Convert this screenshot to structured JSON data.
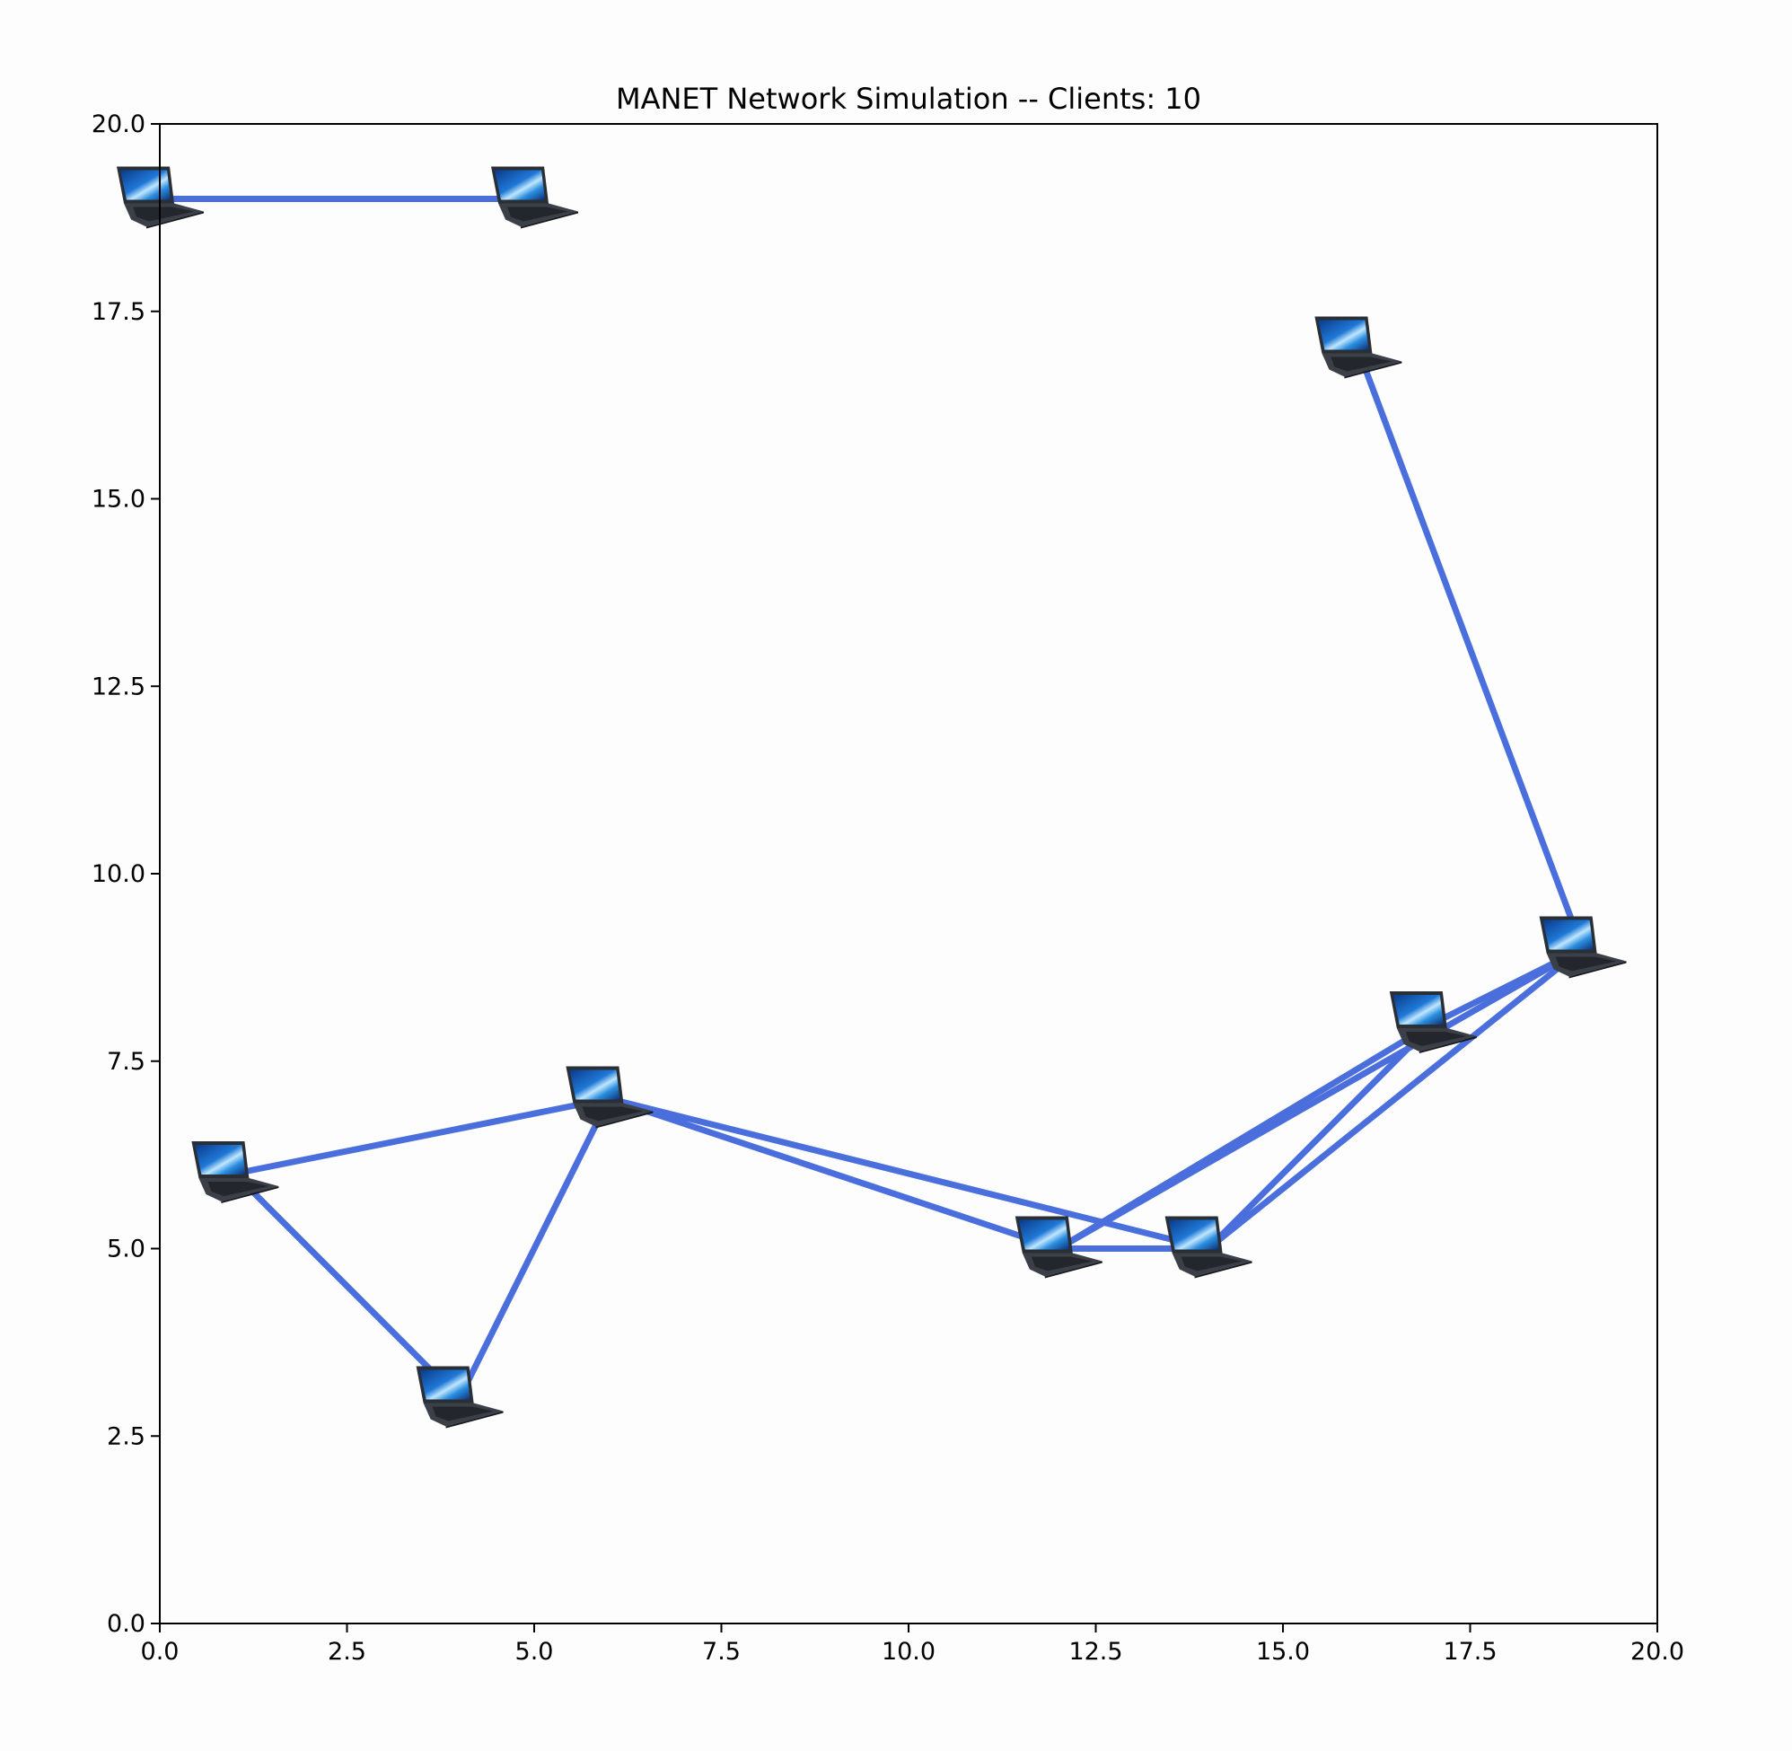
{
  "chart_data": {
    "type": "scatter",
    "title": "MANET Network Simulation -- Clients: 10",
    "xlabel": "",
    "ylabel": "",
    "xlim": [
      0.0,
      20.0
    ],
    "ylim": [
      0.0,
      20.0
    ],
    "x_ticks": [
      "0.0",
      "2.5",
      "5.0",
      "7.5",
      "10.0",
      "12.5",
      "15.0",
      "17.5",
      "20.0"
    ],
    "y_ticks": [
      "0.0",
      "2.5",
      "5.0",
      "7.5",
      "10.0",
      "12.5",
      "15.0",
      "17.5",
      "20.0"
    ],
    "grid": false,
    "marker": "laptop-icon",
    "link_color": "#4a6fdc",
    "nodes": [
      {
        "id": 0,
        "x": 0.0,
        "y": 19.0
      },
      {
        "id": 1,
        "x": 5.0,
        "y": 19.0
      },
      {
        "id": 2,
        "x": 16.0,
        "y": 17.0
      },
      {
        "id": 3,
        "x": 19.0,
        "y": 9.0
      },
      {
        "id": 4,
        "x": 17.0,
        "y": 8.0
      },
      {
        "id": 5,
        "x": 6.0,
        "y": 7.0
      },
      {
        "id": 6,
        "x": 1.0,
        "y": 6.0
      },
      {
        "id": 7,
        "x": 4.0,
        "y": 3.0
      },
      {
        "id": 8,
        "x": 12.0,
        "y": 5.0
      },
      {
        "id": 9,
        "x": 14.0,
        "y": 5.0
      }
    ],
    "links": [
      [
        0,
        1
      ],
      [
        2,
        3
      ],
      [
        6,
        5
      ],
      [
        6,
        7
      ],
      [
        7,
        5
      ],
      [
        5,
        8
      ],
      [
        5,
        9
      ],
      [
        8,
        9
      ],
      [
        8,
        4
      ],
      [
        8,
        3
      ],
      [
        9,
        4
      ],
      [
        9,
        3
      ],
      [
        4,
        3
      ]
    ]
  }
}
